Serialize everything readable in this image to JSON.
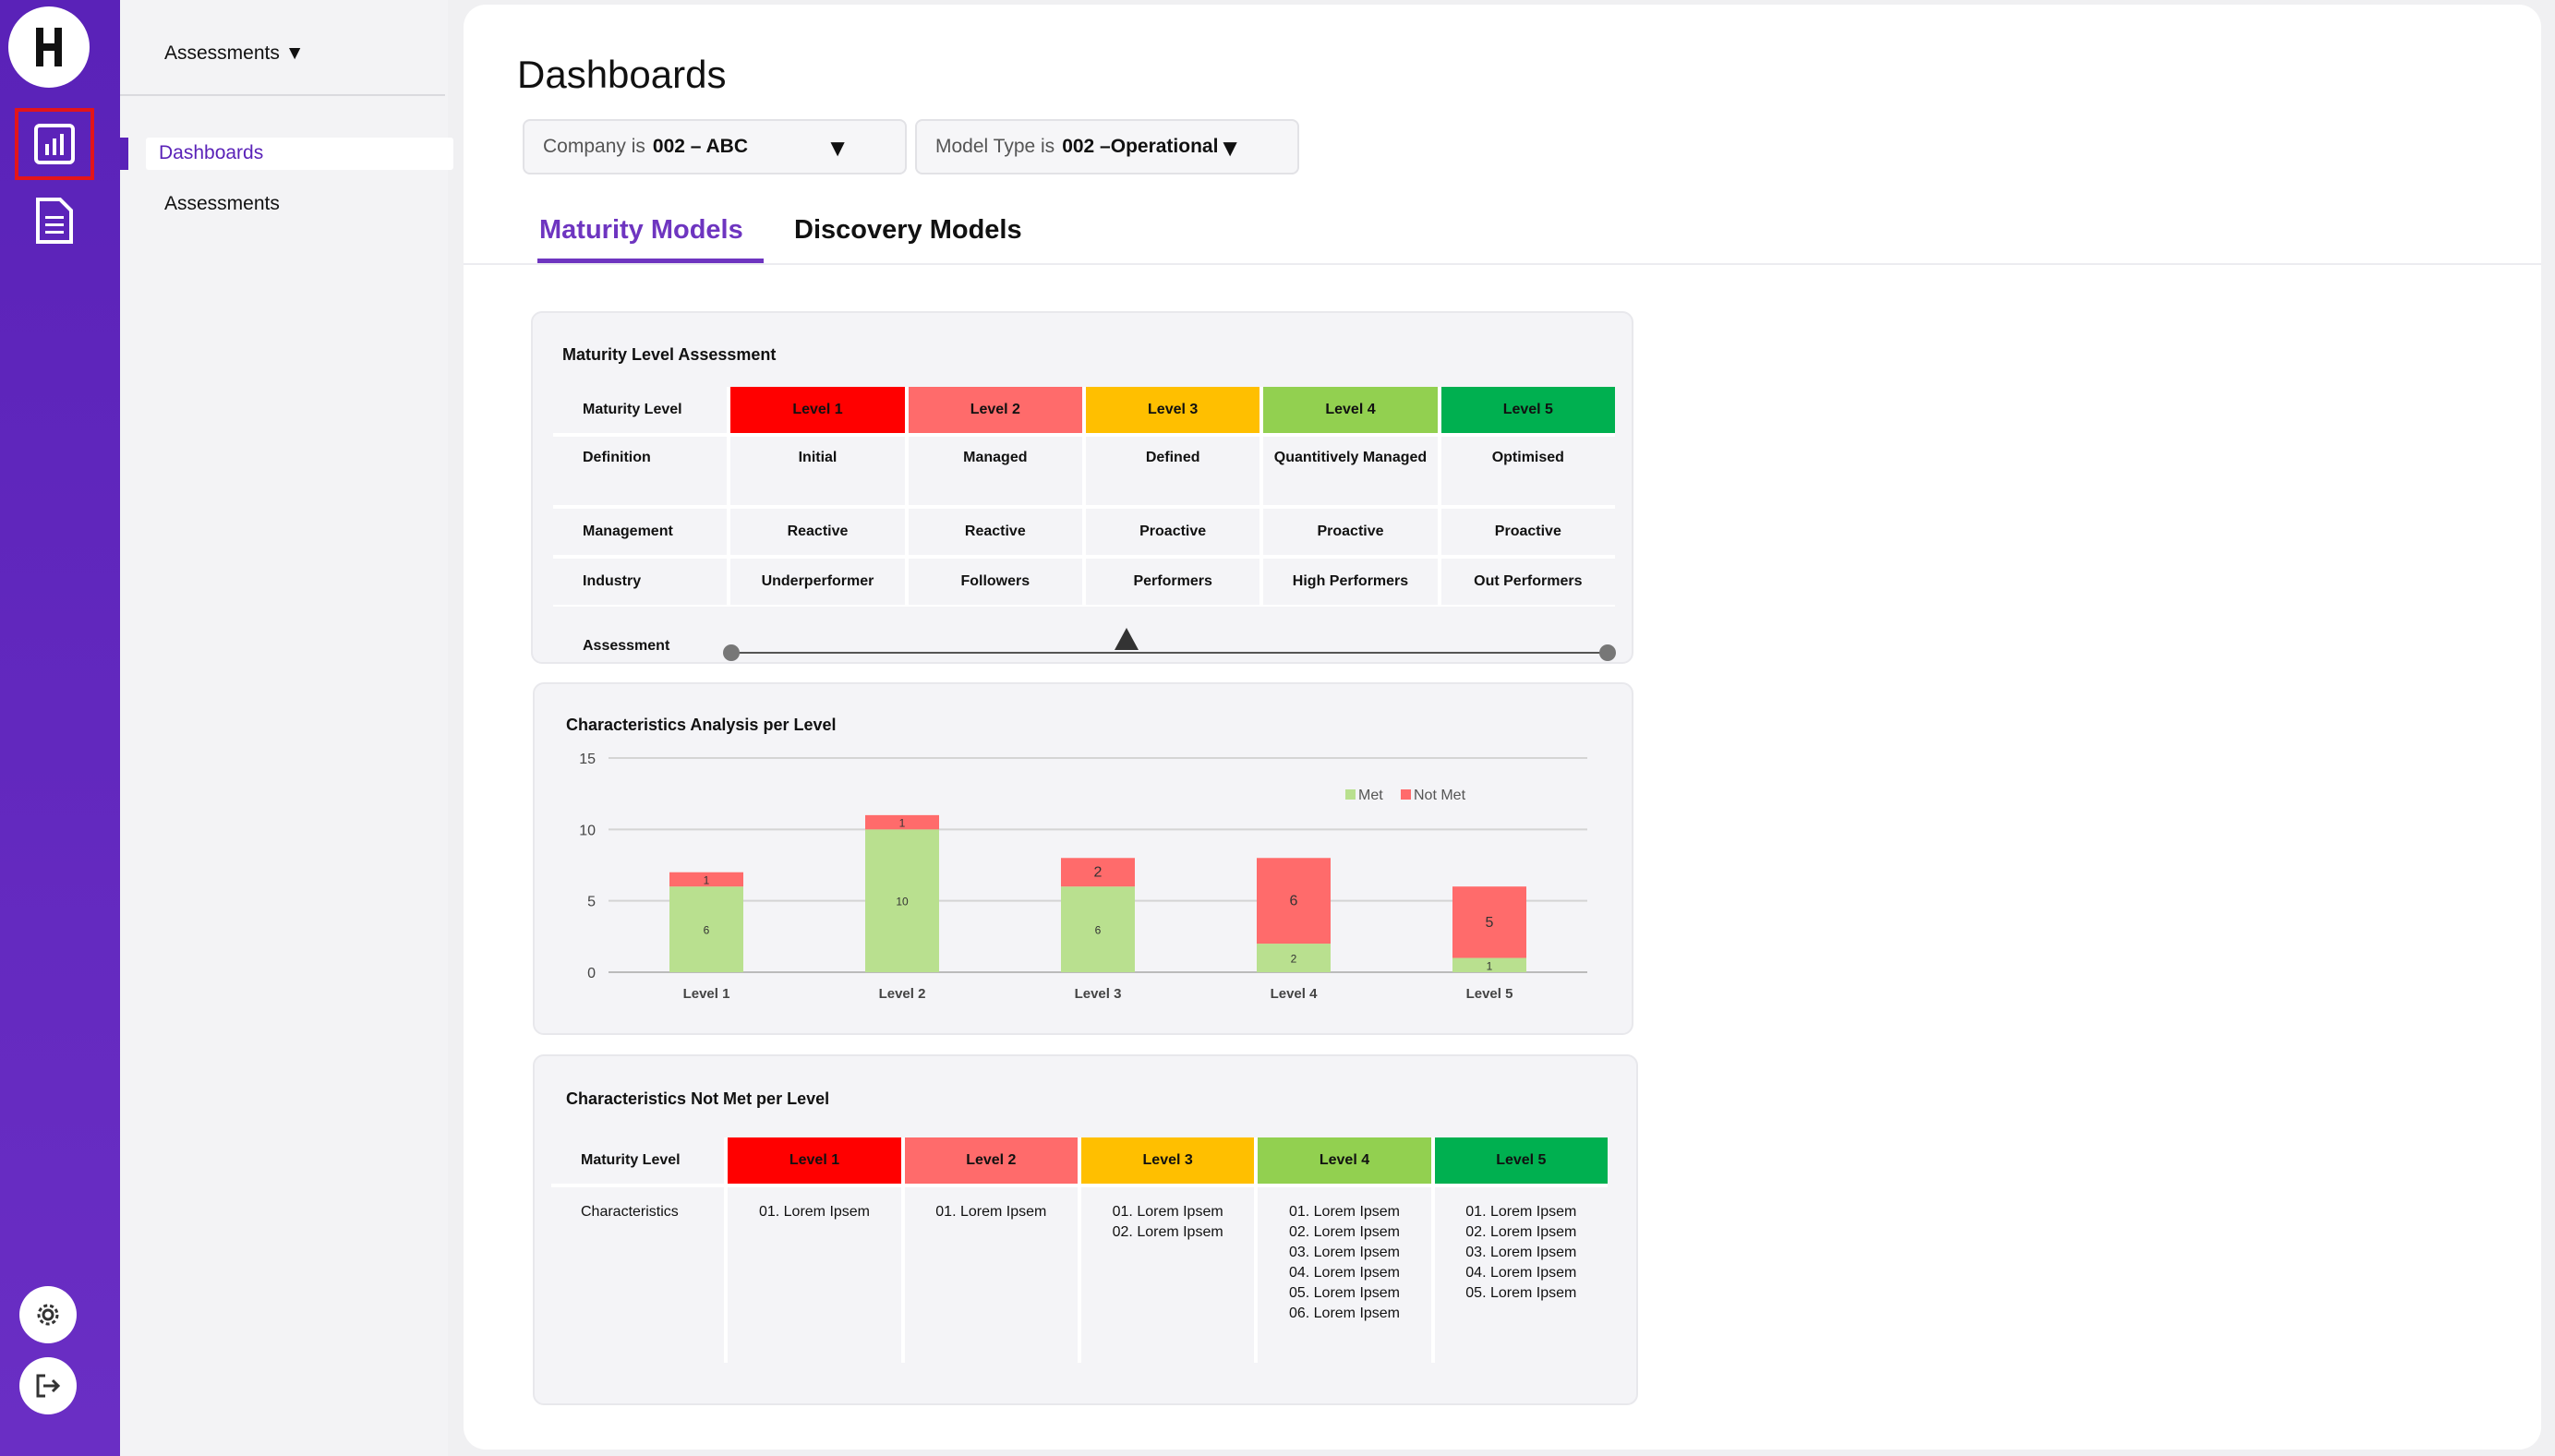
{
  "sidebar": {
    "logo_letter": "H",
    "icons": [
      "dashboard-chart-icon",
      "document-icon",
      "gear-icon",
      "logout-icon"
    ]
  },
  "subnav": {
    "title": "Assessments ▼",
    "items": [
      "Dashboards",
      "Assessments"
    ]
  },
  "page": {
    "title": "Dashboards"
  },
  "filters": [
    {
      "label": "Company is",
      "value": "002 – ABC"
    },
    {
      "label": "Model Type is",
      "value": "002 –Operational"
    }
  ],
  "tabs": [
    "Maturity Models",
    "Discovery Models"
  ],
  "maturity": {
    "title": "Maturity Level Assessment",
    "rows": [
      [
        "Maturity Level",
        "Level 1",
        "Level 2",
        "Level 3",
        "Level 4",
        "Level 5"
      ],
      [
        "Definition",
        "Initial",
        "Managed",
        "Defined",
        "Quantitively Managed",
        "Optimised"
      ],
      [
        "Management",
        "Reactive",
        "Reactive",
        "Proactive",
        "Proactive",
        "Proactive"
      ],
      [
        "Industry",
        "Underperformer",
        "Followers",
        "Performers",
        "High Performers",
        "Out Performers"
      ]
    ],
    "assessment_label": "Assessment",
    "assessment_position": 0.45
  },
  "chart_data": {
    "type": "bar",
    "title": "Characteristics Analysis per Level",
    "categories": [
      "Level 1",
      "Level 2",
      "Level 3",
      "Level 4",
      "Level 5"
    ],
    "series": [
      {
        "name": "Met",
        "values": [
          6,
          10,
          6,
          2,
          1
        ],
        "color": "#b9e08f"
      },
      {
        "name": "Not Met",
        "values": [
          1,
          1,
          2,
          6,
          5
        ],
        "color": "#ff6b6b"
      }
    ],
    "stacked": true,
    "ylim": [
      0,
      15
    ],
    "yticks": [
      "0",
      "5",
      "10",
      "15"
    ],
    "legend": "top-right",
    "grid": true
  },
  "notmet": {
    "title": "Characteristics Not Met per Level",
    "header": [
      "Maturity Level",
      "Level 1",
      "Level 2",
      "Level 3",
      "Level 4",
      "Level 5"
    ],
    "row_label": "Characteristics",
    "lists": [
      [
        "01. Lorem Ipsem"
      ],
      [
        "01. Lorem Ipsem"
      ],
      [
        "01. Lorem Ipsem",
        "02. Lorem Ipsem"
      ],
      [
        "01. Lorem Ipsem",
        "02. Lorem Ipsem",
        "03. Lorem Ipsem",
        "04. Lorem Ipsem",
        "05. Lorem Ipsem",
        "06. Lorem Ipsem"
      ],
      [
        "01. Lorem Ipsem",
        "02. Lorem Ipsem",
        "03. Lorem Ipsem",
        "04. Lorem Ipsem",
        "05. Lorem Ipsem"
      ]
    ]
  }
}
